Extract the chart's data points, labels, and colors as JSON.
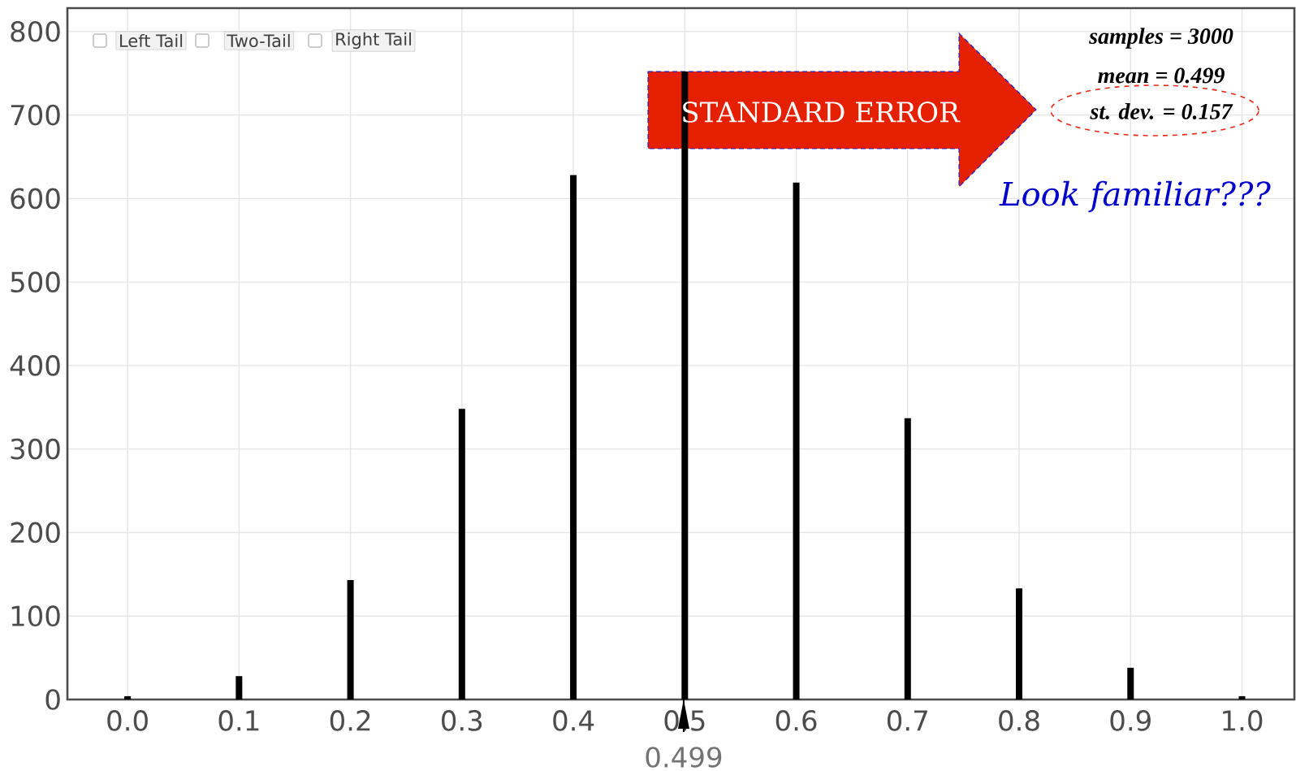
{
  "chart_data": {
    "type": "bar",
    "x": [
      0.0,
      0.1,
      0.2,
      0.3,
      0.4,
      0.5,
      0.6,
      0.7,
      0.8,
      0.9,
      1.0
    ],
    "values": [
      4,
      28,
      143,
      348,
      628,
      752,
      619,
      337,
      133,
      38,
      4
    ],
    "color": "#000000",
    "xlim": [
      -0.054,
      1.047
    ],
    "ylim": [
      0,
      828
    ],
    "xticks": [
      {
        "value": 0.0,
        "label": "0.0"
      },
      {
        "value": 0.1,
        "label": "0.1"
      },
      {
        "value": 0.2,
        "label": "0.2"
      },
      {
        "value": 0.3,
        "label": "0.3"
      },
      {
        "value": 0.4,
        "label": "0.4"
      },
      {
        "value": 0.5,
        "label": "0.5"
      },
      {
        "value": 0.6,
        "label": "0.6"
      },
      {
        "value": 0.7,
        "label": "0.7"
      },
      {
        "value": 0.8,
        "label": "0.8"
      },
      {
        "value": 0.9,
        "label": "0.9"
      },
      {
        "value": 1.0,
        "label": "1.0"
      }
    ],
    "yticks": [
      0,
      100,
      200,
      300,
      400,
      500,
      600,
      700,
      800
    ],
    "grid": true,
    "ref_lines": [
      {
        "axis": "x",
        "value": 0.499,
        "label": "0.499",
        "color": "#000000"
      }
    ],
    "annotations": [
      "Left Tail",
      "Two-Tail",
      "Right Tail",
      "samples = 3000",
      "mean = 0.499",
      "st. dev. = 0.157",
      "STANDARD ERROR",
      "Look familiar???"
    ]
  }
}
